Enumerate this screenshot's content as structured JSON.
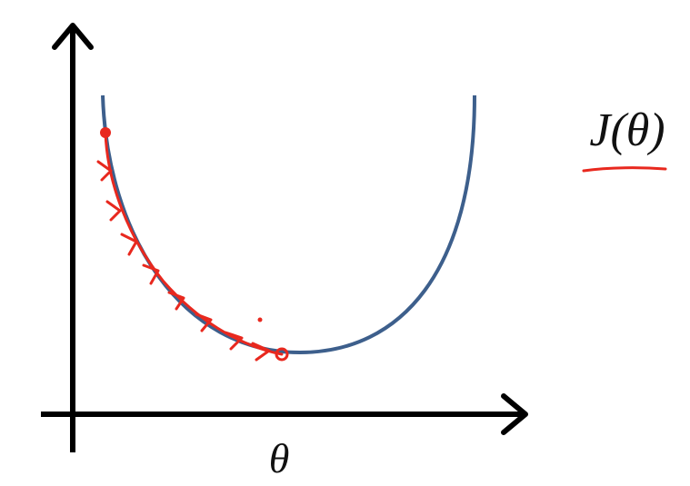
{
  "labels": {
    "cost": "J(θ)",
    "x_axis": "θ"
  }
}
